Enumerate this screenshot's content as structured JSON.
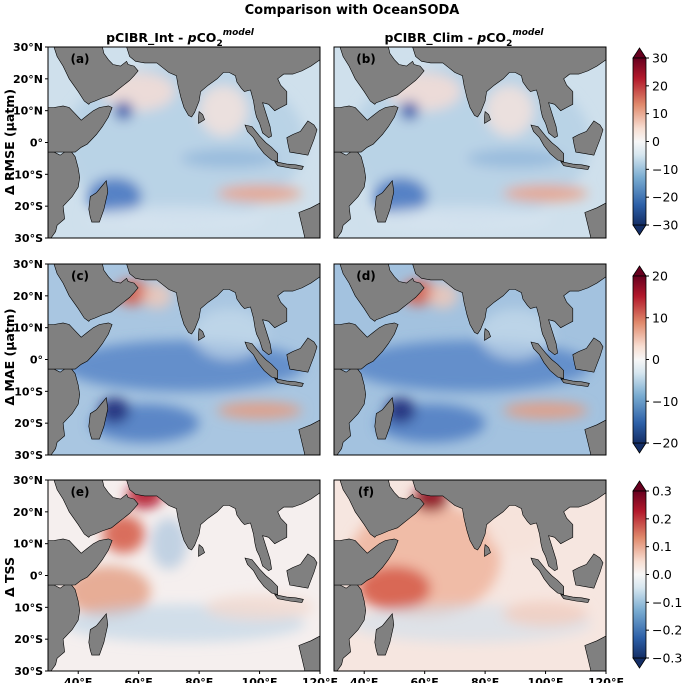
{
  "figure": {
    "title": "Comparison with OceanSODA",
    "columns": [
      {
        "prefix": "pCIBR_Int - ",
        "italic": "p",
        "co": "CO",
        "sub": "2",
        "sup": "model"
      },
      {
        "prefix": "pCIBR_Clim - ",
        "italic": "p",
        "co": "CO",
        "sub": "2",
        "sup": "model"
      }
    ],
    "rows": [
      {
        "label": "Δ RMSE (μatm)",
        "cb_ticks": [
          "30",
          "20",
          "10",
          "0",
          "−10",
          "−20",
          "−30"
        ]
      },
      {
        "label": "Δ MAE (μatm)",
        "cb_ticks": [
          "20",
          "10",
          "0",
          "−10",
          "−20"
        ]
      },
      {
        "label": "Δ TSS",
        "cb_ticks": [
          "0.3",
          "0.2",
          "0.1",
          "0.0",
          "−0.1",
          "−0.2",
          "−0.3"
        ]
      }
    ],
    "panel_labels": [
      "(a)",
      "(b)",
      "(c)",
      "(d)",
      "(e)",
      "(f)"
    ],
    "lat_ticks": [
      "30°N",
      "20°N",
      "10°N",
      "0°",
      "10°S",
      "20°S",
      "30°S"
    ],
    "lon_ticks": [
      "40°E",
      "60°E",
      "80°E",
      "100°E",
      "120°E"
    ]
  },
  "chart_data": {
    "type": "heatmap",
    "title": "Comparison with OceanSODA",
    "map_extent": {
      "lon": [
        30,
        120
      ],
      "lat": [
        -30,
        30
      ]
    },
    "colormap": "diverging blue-white-red (RdBu_r)",
    "colors": {
      "land": "#808080",
      "low": "#1f2f86",
      "mid": "#f3f3f3",
      "high": "#6e0f16"
    },
    "panels": [
      {
        "id": "(a)",
        "row": "Δ RMSE (μatm)",
        "column": "pCIBR_Int - pCO2 model",
        "range": [
          -30,
          30
        ]
      },
      {
        "id": "(b)",
        "row": "Δ RMSE (μatm)",
        "column": "pCIBR_Clim - pCO2 model",
        "range": [
          -30,
          30
        ]
      },
      {
        "id": "(c)",
        "row": "Δ MAE (μatm)",
        "column": "pCIBR_Int - pCO2 model",
        "range": [
          -20,
          20
        ]
      },
      {
        "id": "(d)",
        "row": "Δ MAE (μatm)",
        "column": "pCIBR_Clim - pCO2 model",
        "range": [
          -20,
          20
        ]
      },
      {
        "id": "(e)",
        "row": "Δ TSS",
        "column": "pCIBR_Int - pCO2 model",
        "range": [
          -0.3,
          0.3
        ]
      },
      {
        "id": "(f)",
        "row": "Δ TSS",
        "column": "pCIBR_Clim - pCO2 model",
        "range": [
          -0.3,
          0.3
        ]
      }
    ],
    "colorbars": [
      {
        "row": "Δ RMSE (μatm)",
        "min": -30,
        "max": 30,
        "ticks": [
          30,
          20,
          10,
          0,
          -10,
          -20,
          -30
        ],
        "extend": "both"
      },
      {
        "row": "Δ MAE (μatm)",
        "min": -20,
        "max": 20,
        "ticks": [
          20,
          10,
          0,
          -10,
          -20
        ],
        "extend": "both"
      },
      {
        "row": "Δ TSS",
        "min": -0.3,
        "max": 0.3,
        "ticks": [
          0.3,
          0.2,
          0.1,
          0.0,
          -0.1,
          -0.2,
          -0.3
        ],
        "extend": "both"
      }
    ],
    "axes": {
      "x": {
        "ticks": [
          40,
          60,
          80,
          100,
          120
        ],
        "unit": "°E"
      },
      "y": {
        "ticks": [
          30,
          20,
          10,
          0,
          -10,
          -20,
          -30
        ],
        "unit": "°"
      }
    }
  }
}
